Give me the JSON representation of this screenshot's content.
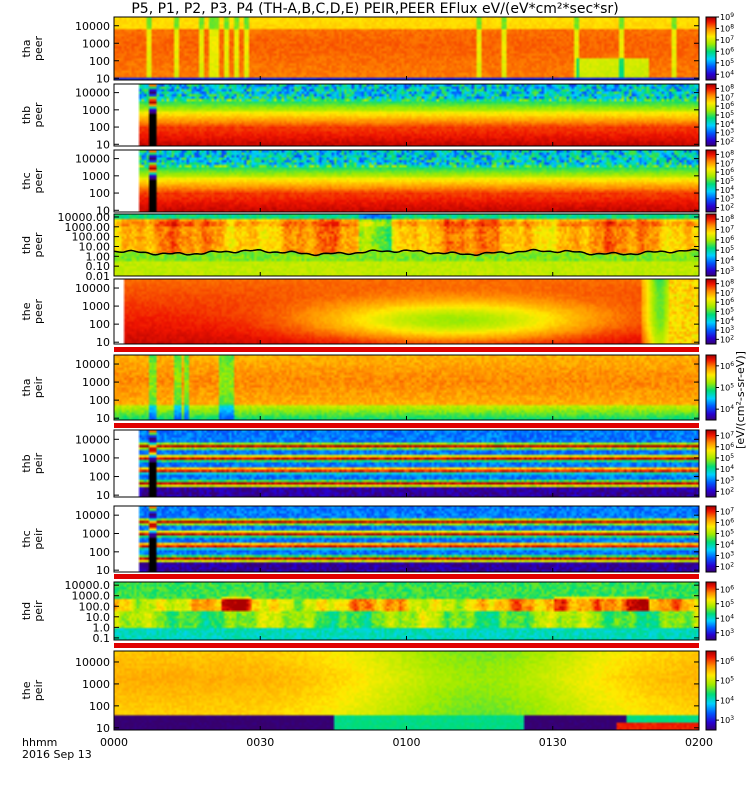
{
  "title": "P5, P1, P2, P3, P4 (TH-A,B,C,D,E) PEIR,PEER EFlux eV/(eV*cm²*sec*sr)",
  "x_axis": {
    "ticks": [
      "0000",
      "0030",
      "0100",
      "0130",
      "0200"
    ],
    "tick_minutes": [
      0,
      30,
      60,
      90,
      120
    ],
    "label_line1": "hhmm",
    "label_line2": "2016 Sep 13"
  },
  "colorbar_label": "[eV/(cm²-s-sr-eV)]",
  "chart_data": {
    "type": "heatmap",
    "title": "P5, P1, P2, P3, P4 (TH-A,B,C,D,E) PEIR,PEER EFlux eV/(eV*cm²*sec*sr)",
    "x_range_minutes": [
      0,
      120
    ],
    "panels": [
      {
        "name": "tha peer",
        "ylabel": [
          "tha",
          "peer"
        ],
        "y_ticks": [
          "10",
          "100",
          "1000",
          "10000"
        ],
        "ylim_log10": [
          0.9,
          4.5
        ],
        "cbar_ticks_log10": [
          4,
          5,
          6,
          7,
          8,
          9
        ],
        "cbar_range_log10": [
          3.5,
          9
        ],
        "profile": "peer_a"
      },
      {
        "name": "thb peer",
        "ylabel": [
          "thb",
          "peer"
        ],
        "y_ticks": [
          "10",
          "100",
          "1000",
          "10000"
        ],
        "ylim_log10": [
          0.9,
          4.5
        ],
        "cbar_ticks_log10": [
          2,
          3,
          4,
          5,
          6,
          7,
          8
        ],
        "cbar_range_log10": [
          1.5,
          8.5
        ],
        "profile": "peer_bc",
        "data_start_min": 5,
        "gap_min": [
          7.2,
          8.8
        ]
      },
      {
        "name": "thc peer",
        "ylabel": [
          "thc",
          "peer"
        ],
        "y_ticks": [
          "10",
          "100",
          "1000",
          "10000"
        ],
        "ylim_log10": [
          0.9,
          4.5
        ],
        "cbar_ticks_log10": [
          2,
          3,
          4,
          5,
          6,
          7,
          8
        ],
        "cbar_range_log10": [
          1.5,
          8.5
        ],
        "profile": "peer_bc",
        "data_start_min": 5,
        "gap_min": [
          7.2,
          8.8
        ]
      },
      {
        "name": "thd peer",
        "ylabel": [
          "thd",
          "peer"
        ],
        "y_ticks": [
          "0.01",
          "0.10",
          "1.00",
          "10.00",
          "100.00",
          "1000.00",
          "10000.00"
        ],
        "ylim_log10": [
          -2,
          4.3
        ],
        "cbar_ticks_log10": [
          3,
          4,
          5,
          6,
          7,
          8
        ],
        "cbar_range_log10": [
          2.5,
          8.5
        ],
        "profile": "peer_d"
      },
      {
        "name": "the peer",
        "ylabel": [
          "the",
          "peer"
        ],
        "y_ticks": [
          "10",
          "100",
          "1000",
          "10000"
        ],
        "ylim_log10": [
          0.9,
          4.5
        ],
        "cbar_ticks_log10": [
          2,
          3,
          4,
          5,
          6,
          7,
          8
        ],
        "cbar_range_log10": [
          1.5,
          8.5
        ],
        "profile": "peer_e",
        "data_start_min": 2.2
      },
      {
        "name": "tha peir",
        "ylabel": [
          "tha",
          "peir"
        ],
        "y_ticks": [
          "10",
          "100",
          "1000",
          "10000"
        ],
        "ylim_log10": [
          0.9,
          4.5
        ],
        "cbar_ticks_log10": [
          4,
          5,
          6
        ],
        "cbar_range_log10": [
          3.5,
          6.5
        ],
        "profile": "peir_a"
      },
      {
        "name": "thb peir",
        "ylabel": [
          "thb",
          "peir"
        ],
        "y_ticks": [
          "10",
          "100",
          "1000",
          "10000"
        ],
        "ylim_log10": [
          0.9,
          4.5
        ],
        "cbar_ticks_log10": [
          2,
          3,
          4,
          5,
          6,
          7
        ],
        "cbar_range_log10": [
          1.5,
          7.5
        ],
        "profile": "peir_bc",
        "data_start_min": 5,
        "gap_min": [
          7.2,
          8.8
        ]
      },
      {
        "name": "thc peir",
        "ylabel": [
          "thc",
          "peir"
        ],
        "y_ticks": [
          "10",
          "100",
          "1000",
          "10000"
        ],
        "ylim_log10": [
          0.9,
          4.5
        ],
        "cbar_ticks_log10": [
          2,
          3,
          4,
          5,
          6,
          7
        ],
        "cbar_range_log10": [
          1.5,
          7.5
        ],
        "profile": "peir_bc",
        "data_start_min": 5,
        "gap_min": [
          7.2,
          8.8
        ]
      },
      {
        "name": "thd peir",
        "ylabel": [
          "thd",
          "peir"
        ],
        "y_ticks": [
          "0.1",
          "1.0",
          "10.0",
          "100.0",
          "1000.0",
          "10000.0"
        ],
        "ylim_log10": [
          -1.2,
          4.3
        ],
        "cbar_ticks_log10": [
          3,
          4,
          5,
          6
        ],
        "cbar_range_log10": [
          2.5,
          6.5
        ],
        "profile": "peir_d"
      },
      {
        "name": "the peir",
        "ylabel": [
          "the",
          "peir"
        ],
        "y_ticks": [
          "10",
          "100",
          "1000",
          "10000"
        ],
        "ylim_log10": [
          0.9,
          4.5
        ],
        "cbar_ticks_log10": [
          3,
          4,
          5,
          6
        ],
        "cbar_range_log10": [
          2.5,
          6.5
        ],
        "profile": "peir_e"
      }
    ]
  }
}
